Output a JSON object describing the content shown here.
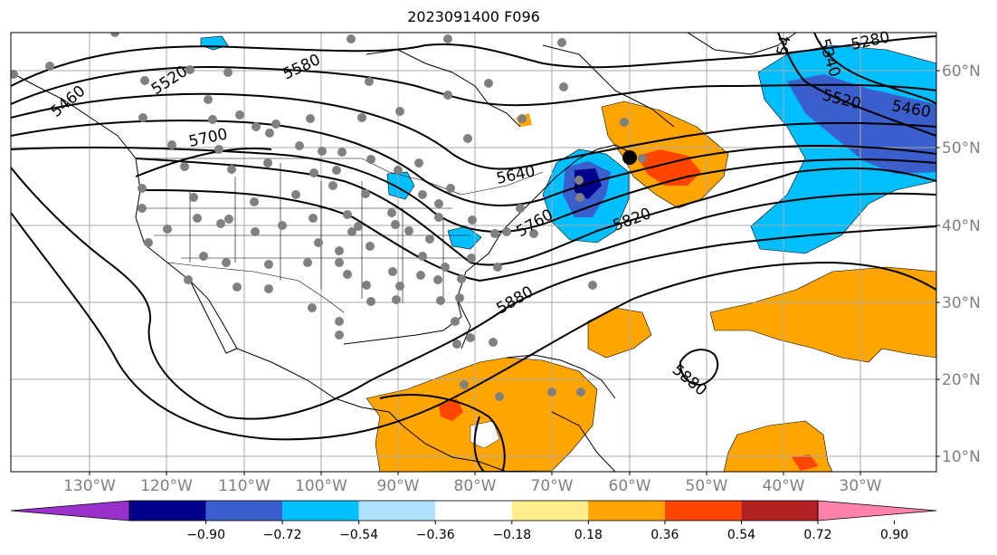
{
  "title": "2023091400 F096",
  "lon_labels": [
    "130°W",
    "120°W",
    "110°W",
    "100°W",
    "90°W",
    "80°W",
    "70°W",
    "60°W",
    "50°W",
    "40°W",
    "30°W"
  ],
  "lat_labels": [
    "60°N",
    "50°N",
    "40°N",
    "30°N",
    "20°N",
    "10°N"
  ],
  "contour_labels": [
    "5520",
    "5580",
    "5700",
    "5760",
    "5640",
    "5820",
    "5880",
    "5880",
    "5280",
    "5340",
    "5520",
    "5460",
    "5460",
    "54"
  ],
  "colorbar": {
    "ticks": [
      "−0.90",
      "−0.72",
      "−0.54",
      "−0.36",
      "−0.18",
      "0.18",
      "0.36",
      "0.54",
      "0.72",
      "0.90"
    ],
    "colors": [
      "#9932cc",
      "#00008b",
      "#3a5fcd",
      "#00bfff",
      "#b0e2ff",
      "#ffffff",
      "#ffec8b",
      "#ffa500",
      "#ff4500",
      "#b22222",
      "#ff82ab"
    ]
  },
  "fill_colors": {
    "orange": "#ffa500",
    "red": "#ff4500",
    "light_blue": "#00bfff",
    "mid_blue": "#3a5fcd",
    "pale_blue": "#b0e2ff"
  }
}
